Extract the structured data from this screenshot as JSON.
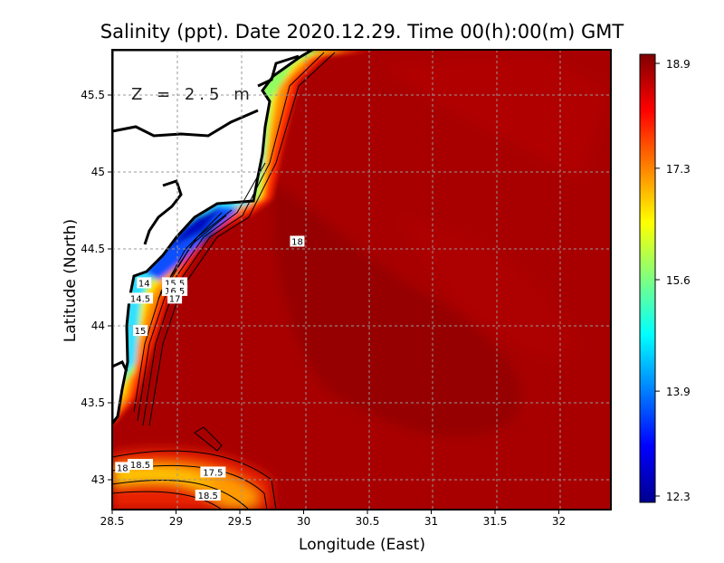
{
  "chart_data": {
    "type": "heatmap",
    "title": "Salinity (ppt). Date 2020.12.29. Time 00(h):00(m) GMT",
    "annotation": "Z = 2.5 m",
    "xlabel": "Longitude (East)",
    "ylabel": "Latitude (North)",
    "xlim": [
      28.5,
      32.4
    ],
    "ylim": [
      42.8,
      45.8
    ],
    "x_ticks": [
      "28.5",
      "29",
      "29.5",
      "30",
      "30.5",
      "31",
      "31.5",
      "32"
    ],
    "y_ticks": [
      "43",
      "43.5",
      "44",
      "44.5",
      "45",
      "45.5"
    ],
    "grid": true,
    "colorbar": {
      "colormap": "jet",
      "min": 12.3,
      "max": 18.9,
      "ticks": [
        "18.9",
        "17.3",
        "15.6",
        "13.9",
        "12.3"
      ],
      "position": "right"
    },
    "contour_labels": [
      {
        "text": "18",
        "lon": 29.95,
        "lat": 44.55
      },
      {
        "text": "14",
        "lon": 28.75,
        "lat": 44.28
      },
      {
        "text": "15.5",
        "lon": 28.99,
        "lat": 44.28
      },
      {
        "text": "16.5",
        "lon": 28.99,
        "lat": 44.23
      },
      {
        "text": "17",
        "lon": 28.99,
        "lat": 44.18
      },
      {
        "text": "14.5",
        "lon": 28.72,
        "lat": 44.18
      },
      {
        "text": "15",
        "lon": 28.72,
        "lat": 43.97
      },
      {
        "text": "18",
        "lon": 28.58,
        "lat": 43.08
      },
      {
        "text": "18.5",
        "lon": 28.72,
        "lat": 43.1
      },
      {
        "text": "17.5",
        "lon": 29.29,
        "lat": 43.05
      },
      {
        "text": "18.5",
        "lon": 29.25,
        "lat": 42.9
      }
    ],
    "colors": {
      "open_sea": "#a80000",
      "land": "#ffffff",
      "coastline": "#000000"
    }
  }
}
